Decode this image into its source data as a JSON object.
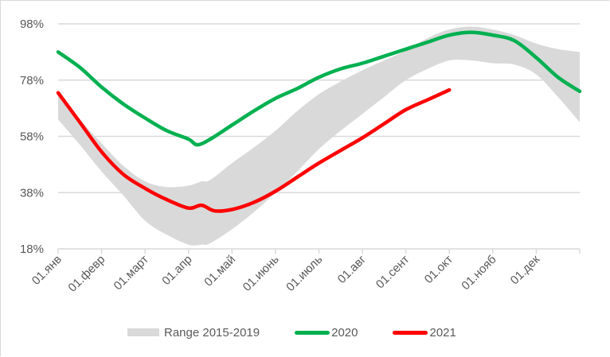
{
  "chart_data": {
    "type": "area",
    "title": "",
    "xlabel": "",
    "ylabel": "",
    "ylim": [
      18,
      98
    ],
    "y_ticks": [
      "98%",
      "78%",
      "58%",
      "38%",
      "18%"
    ],
    "y_tick_values": [
      98,
      78,
      58,
      38,
      18
    ],
    "grid": true,
    "legend_position": "bottom",
    "x_domain": [
      0,
      12
    ],
    "categories": [
      "01.янв",
      "01.февр",
      "01.март",
      "01.апр",
      "01.май",
      "01.июнь",
      "01.июль",
      "01.авг",
      "01.сент",
      "01.окт",
      "01.нояб",
      "01.дек"
    ],
    "x_tick_positions": [
      0,
      1,
      2,
      3,
      4,
      5,
      6,
      7,
      8,
      9,
      10,
      11,
      12
    ],
    "band": {
      "name": "Range 2015-2019",
      "color": "#d9d9d9",
      "x": [
        0,
        0.5,
        1,
        1.5,
        2,
        2.5,
        3,
        3.3,
        3.5,
        4,
        4.5,
        5,
        5.5,
        6,
        6.5,
        7,
        7.5,
        8,
        8.5,
        9,
        9.5,
        10,
        10.5,
        11,
        11.5,
        12
      ],
      "upper": [
        73.5,
        64,
        55.5,
        47.5,
        42,
        40,
        40.5,
        42,
        42.5,
        48.5,
        54,
        60,
        67,
        73,
        77.5,
        81.5,
        85,
        88.5,
        93,
        96,
        97,
        96,
        94,
        91,
        89,
        88
      ],
      "lower": [
        64,
        55,
        45.5,
        37,
        28,
        23,
        19.5,
        19.5,
        20,
        25,
        31,
        38,
        45.5,
        53.5,
        60,
        66,
        72,
        78,
        82,
        85,
        85,
        84,
        83.5,
        80,
        72,
        63
      ]
    },
    "series": [
      {
        "name": "2020",
        "color": "#00b050",
        "x": [
          0,
          0.5,
          1,
          1.5,
          2,
          2.5,
          3,
          3.2,
          3.5,
          4,
          4.5,
          5,
          5.5,
          6,
          6.5,
          7,
          7.5,
          8,
          8.5,
          9,
          9.5,
          10,
          10.5,
          11,
          11.5,
          12
        ],
        "values": [
          88,
          82.5,
          75.5,
          69.5,
          64.5,
          60,
          57,
          55,
          57,
          62,
          67,
          71.5,
          75,
          79,
          82,
          84,
          86.5,
          89,
          91.5,
          94,
          95,
          94,
          92,
          86,
          79,
          74
        ]
      },
      {
        "name": "2021",
        "color": "#ff0000",
        "x": [
          0,
          0.5,
          1,
          1.5,
          2,
          2.5,
          3,
          3.3,
          3.6,
          4,
          4.5,
          5,
          5.5,
          6,
          6.5,
          7,
          7.5,
          8,
          8.5,
          9
        ],
        "values": [
          73.5,
          63,
          52.5,
          44.5,
          39.5,
          35.5,
          32.5,
          33.5,
          31.5,
          32,
          34.5,
          38.5,
          43.5,
          48.5,
          53,
          57.5,
          62.5,
          67.5,
          71,
          74.5
        ]
      }
    ]
  },
  "legend": {
    "band_label": "Range 2015-2019",
    "series_2020_label": "2020",
    "series_2021_label": "2021"
  }
}
